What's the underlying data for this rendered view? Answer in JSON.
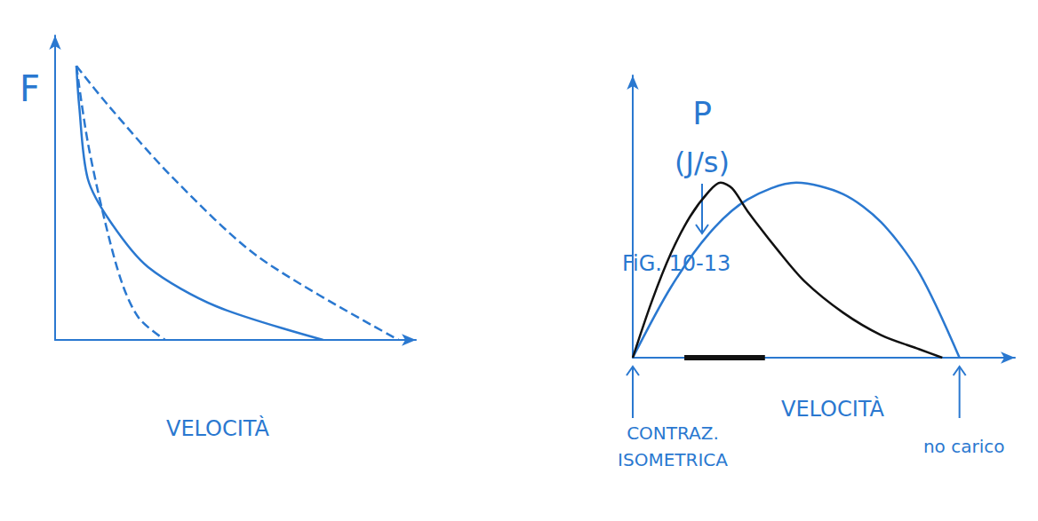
{
  "chart_data": [
    {
      "type": "line",
      "y_label": "F",
      "x_label": "VELOCITÀ",
      "xlim": [
        0,
        105
      ],
      "ylim": [
        0,
        100
      ],
      "tick_labels": false,
      "grid": false,
      "series": [
        {
          "color": "#2a78d0",
          "line_style": "dashed",
          "x": [
            6.2,
            9.5,
            14.5,
            19.5,
            24.5,
            32
          ],
          "values": [
            90,
            65,
            39,
            18.6,
            7,
            0
          ]
        },
        {
          "color": "#2a78d0",
          "line_style": "solid",
          "x": [
            6.2,
            7,
            9.5,
            16,
            27,
            47,
            78
          ],
          "values": [
            90,
            77,
            53,
            39,
            24,
            11,
            0
          ]
        },
        {
          "color": "#2a78d0",
          "line_style": "dashed",
          "x": [
            6.2,
            15.5,
            34.5,
            59.5,
            100
          ],
          "values": [
            90,
            77,
            53,
            27,
            0
          ]
        }
      ]
    },
    {
      "type": "line",
      "y_label": "P",
      "y_unit": "(J/s)",
      "note": "FiG. 10-13",
      "x_label": "VELOCITÀ",
      "xlim": [
        0,
        100
      ],
      "ylim": [
        0,
        100
      ],
      "tick_labels": false,
      "grid": false,
      "marked_range": [
        13.5,
        34.6
      ],
      "annotations": [
        {
          "text": "CONTRAZ. ISOMETRICA",
          "x": 0
        },
        {
          "text": "no carico",
          "x": 85.5
        }
      ],
      "series": [
        {
          "color": "#2a78d0",
          "line_style": "solid",
          "x": [
            0,
            10,
            20,
            30,
            42.8,
            55,
            65,
            75,
            85.5
          ],
          "values": [
            0,
            25,
            44,
            56,
            62,
            58,
            48,
            30,
            0
          ]
        },
        {
          "color": "#111111",
          "line_style": "solid",
          "x": [
            0,
            5,
            10,
            15,
            20,
            23,
            26,
            30,
            38,
            45,
            55,
            65,
            75,
            81
          ],
          "values": [
            0,
            20,
            37,
            50,
            59,
            62,
            60,
            52,
            38,
            27,
            16,
            8,
            3,
            0
          ]
        }
      ]
    }
  ]
}
